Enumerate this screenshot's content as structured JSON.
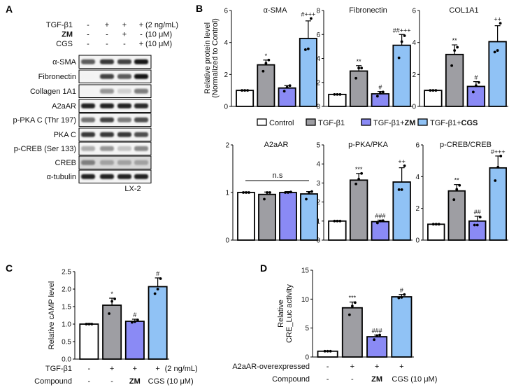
{
  "colors": {
    "Control": "#ffffff",
    "TGF-β1": "#9e9ea3",
    "TGF-β1+ZM": "#8a8af5",
    "TGF-β1+CGS": "#90c2f5",
    "edge": "#000000"
  },
  "panel_labels": {
    "A": "A",
    "B": "B",
    "C": "C",
    "D": "D"
  },
  "blot": {
    "conditions": [
      {
        "label": "TGF-β1",
        "bold": false,
        "signs": [
          "-",
          "+",
          "+",
          "+"
        ],
        "unit": "(2 ng/mL)"
      },
      {
        "label": "ZM",
        "bold": true,
        "signs": [
          "-",
          "-",
          "+",
          "-"
        ],
        "unit": "(10 μM)"
      },
      {
        "label": "CGS",
        "bold": false,
        "signs": [
          "-",
          "-",
          "-",
          "+"
        ],
        "unit": "(10 μM)"
      }
    ],
    "rows": [
      {
        "label": "α-SMA",
        "band_intensity": [
          0.7,
          0.85,
          0.8,
          1.0
        ]
      },
      {
        "label": "Fibronectin",
        "band_intensity": [
          0.05,
          0.8,
          0.7,
          1.0
        ]
      },
      {
        "label": "Collagen 1A1",
        "band_intensity": [
          0.05,
          0.45,
          0.2,
          0.55
        ]
      },
      {
        "label": "A2aAR",
        "band_intensity": [
          0.95,
          0.95,
          0.95,
          0.9
        ]
      },
      {
        "label": "p-PKA C (Thr 197)",
        "band_intensity": [
          0.6,
          0.8,
          0.55,
          0.75
        ]
      },
      {
        "label": "PKA C",
        "band_intensity": [
          0.85,
          0.85,
          0.85,
          0.75
        ]
      },
      {
        "label": "p-CREB (Ser 133)",
        "band_intensity": [
          0.35,
          0.45,
          0.25,
          0.5
        ]
      },
      {
        "label": "CREB",
        "band_intensity": [
          0.55,
          0.4,
          0.4,
          0.4
        ]
      },
      {
        "label": "α-tubulin",
        "band_intensity": [
          0.95,
          0.95,
          0.95,
          0.95
        ]
      }
    ],
    "cell_line": "LX-2"
  },
  "legend": [
    {
      "label": "Control",
      "bold_suffix": ""
    },
    {
      "label": "TGF-β1",
      "bold_suffix": ""
    },
    {
      "label": "TGF-β1+",
      "bold_suffix": "ZM"
    },
    {
      "label": "TGF-β1+",
      "bold_suffix": "CGS"
    }
  ],
  "b_ylabel": [
    "Relative protein level",
    "(Normalized to Control)"
  ],
  "chart_data": [
    {
      "id": "asma",
      "type": "bar",
      "title": "α-SMA",
      "categories": [
        "Control",
        "TGF-β1",
        "TGF-β1+ZM",
        "TGF-β1+CGS"
      ],
      "values": [
        1.0,
        2.6,
        1.15,
        4.25
      ],
      "errors": [
        0.02,
        0.3,
        0.15,
        1.1
      ],
      "points": [
        [
          1,
          1,
          1
        ],
        [
          2.2,
          2.7,
          2.9
        ],
        [
          0.95,
          1.2,
          1.3
        ],
        [
          3.55,
          3.6,
          5.5
        ]
      ],
      "annotations": [
        "",
        "*",
        "",
        "#+++"
      ],
      "ylim": [
        0,
        6
      ],
      "yticks": [
        "0",
        "2",
        "4",
        "6"
      ]
    },
    {
      "id": "fn",
      "type": "bar",
      "title": "Fibronectin",
      "categories": [
        "Control",
        "TGF-β1",
        "TGF-β1+ZM",
        "TGF-β1+CGS"
      ],
      "values": [
        1.0,
        2.95,
        1.05,
        5.1
      ],
      "errors": [
        0.02,
        0.45,
        0.2,
        0.9
      ],
      "points": [
        [
          1,
          1,
          1
        ],
        [
          2.35,
          3.2,
          3.2
        ],
        [
          0.85,
          1.1,
          1.2
        ],
        [
          4.05,
          5.4,
          5.9
        ]
      ],
      "annotations": [
        "",
        "**",
        "#",
        "##+++"
      ],
      "ylim": [
        0,
        8
      ],
      "yticks": [
        "0",
        "2",
        "4",
        "6",
        "8"
      ]
    },
    {
      "id": "col",
      "type": "bar",
      "title": "COL1A1",
      "categories": [
        "Control",
        "TGF-β1",
        "TGF-β1+ZM",
        "TGF-β1+CGS"
      ],
      "values": [
        1.0,
        3.25,
        1.25,
        4.05
      ],
      "errors": [
        0.02,
        0.6,
        0.3,
        1.0
      ],
      "points": [
        [
          1,
          1,
          1
        ],
        [
          2.55,
          3.5,
          3.7
        ],
        [
          0.9,
          1.3,
          1.5
        ],
        [
          3.4,
          3.5,
          5.2
        ]
      ],
      "annotations": [
        "",
        "**",
        "#",
        "++"
      ],
      "ylim": [
        0,
        6
      ],
      "yticks": [
        "0",
        "2",
        "4",
        "6"
      ]
    },
    {
      "id": "a2a",
      "type": "bar",
      "title": "A2aAR",
      "categories": [
        "Control",
        "TGF-β1",
        "TGF-β1+ZM",
        "TGF-β1+CGS"
      ],
      "values": [
        1.0,
        0.96,
        1.0,
        0.97
      ],
      "errors": [
        0.01,
        0.05,
        0.02,
        0.05
      ],
      "points": [
        [
          1,
          1,
          1
        ],
        [
          0.86,
          1.0,
          1.0
        ],
        [
          1.0,
          1.0,
          1.01
        ],
        [
          0.86,
          1.0,
          1.02
        ]
      ],
      "annotations": [
        "",
        "",
        "",
        ""
      ],
      "bracket_label": "n.s",
      "ylim": [
        0,
        2
      ],
      "yticks": [
        "0",
        "1",
        "2"
      ]
    },
    {
      "id": "pka",
      "type": "bar",
      "title": "p-PKA/PKA",
      "categories": [
        "Control",
        "TGF-β1",
        "TGF-β1+ZM",
        "TGF-β1+CGS"
      ],
      "values": [
        1.0,
        3.15,
        0.97,
        3.05
      ],
      "errors": [
        0.02,
        0.35,
        0.08,
        0.75
      ],
      "points": [
        [
          1,
          1,
          1
        ],
        [
          2.95,
          3.2,
          3.5
        ],
        [
          0.9,
          1.0,
          1.02
        ],
        [
          2.65,
          2.65,
          3.9
        ]
      ],
      "annotations": [
        "",
        "***",
        "###",
        "++"
      ],
      "ylim": [
        0,
        5
      ],
      "yticks": [
        "0",
        "1",
        "2",
        "3",
        "4",
        "5"
      ]
    },
    {
      "id": "creb",
      "type": "bar",
      "title": "p-CREB/CREB",
      "categories": [
        "Control",
        "TGF-β1",
        "TGF-β1+ZM",
        "TGF-β1+CGS"
      ],
      "values": [
        1.0,
        3.1,
        1.2,
        4.55
      ],
      "errors": [
        0.02,
        0.4,
        0.3,
        0.75
      ],
      "points": [
        [
          1,
          1,
          1
        ],
        [
          2.55,
          3.2,
          3.45
        ],
        [
          0.95,
          0.95,
          1.45
        ],
        [
          3.75,
          4.6,
          5.3
        ]
      ],
      "annotations": [
        "",
        "**",
        "##",
        "#+++"
      ],
      "ylim": [
        0,
        6
      ],
      "yticks": [
        "0",
        "2",
        "4",
        "6"
      ]
    },
    {
      "id": "C",
      "type": "bar",
      "ylabel": "Relative cAMP level",
      "categories": [
        "Control",
        "TGF-β1",
        "TGF-β1+ZM",
        "TGF-β1+CGS"
      ],
      "values": [
        1.0,
        1.54,
        1.08,
        2.07
      ],
      "errors": [
        0.02,
        0.2,
        0.06,
        0.25
      ],
      "points": [
        [
          1,
          1,
          1
        ],
        [
          1.3,
          1.65,
          1.72
        ],
        [
          1.05,
          1.07,
          1.12
        ],
        [
          1.87,
          2.0,
          2.3
        ]
      ],
      "annotations": [
        "",
        "*",
        "#",
        "#"
      ],
      "ylim": [
        0,
        2.5
      ],
      "yticks": [
        "0.0",
        "0.5",
        "1.0",
        "1.5",
        "2.0",
        "2.5"
      ],
      "conditions": [
        {
          "label": "TGF-β1",
          "values": [
            "-",
            "+",
            "+",
            "+"
          ],
          "unit": "(2 ng/mL)"
        },
        {
          "label": "Compound",
          "values": [
            "-",
            "-",
            "ZM",
            "CGS (10 μM)"
          ],
          "bold": [
            false,
            false,
            true,
            false
          ]
        }
      ]
    },
    {
      "id": "D",
      "type": "bar",
      "ylabel": [
        "Relative",
        "CRE_Luc activity"
      ],
      "categories": [
        "Control",
        "TGF-β1",
        "TGF-β1+ZM",
        "TGF-β1+CGS"
      ],
      "values": [
        1.0,
        8.5,
        3.5,
        10.4
      ],
      "errors": [
        0.05,
        1.0,
        0.3,
        0.4
      ],
      "points": [
        [
          1,
          1,
          1
        ],
        [
          7.3,
          8.8,
          9.4
        ],
        [
          3.0,
          3.7,
          3.8
        ],
        [
          10.2,
          10.3,
          10.8
        ]
      ],
      "annotations": [
        "",
        "***",
        "###",
        "#"
      ],
      "ylim": [
        0,
        15
      ],
      "yticks": [
        "0",
        "5",
        "10",
        "15"
      ],
      "conditions": [
        {
          "label": "A2aAR-overexpressed",
          "values": [
            "-",
            "+",
            "+",
            "+"
          ]
        },
        {
          "label": "Compound",
          "values": [
            "-",
            "-",
            "ZM",
            "CGS (10 μM)"
          ],
          "bold": [
            false,
            false,
            true,
            false
          ]
        }
      ]
    }
  ]
}
